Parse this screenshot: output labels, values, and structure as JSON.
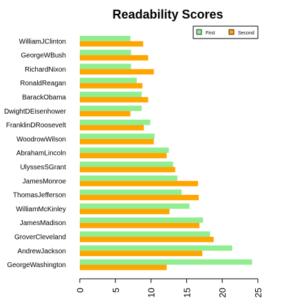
{
  "chart_data": {
    "type": "bar",
    "orientation": "horizontal",
    "title": "Readability Scores",
    "xlabel": "",
    "ylabel": "",
    "xlim": [
      0,
      25
    ],
    "xticks": [
      "0",
      "5",
      "10",
      "15",
      "20",
      "25"
    ],
    "grid": false,
    "legend_position": "top-right",
    "categories": [
      "WilliamJClinton",
      "GeorgeWBush",
      "RichardNixon",
      "RonaldReagan",
      "BarackObama",
      "DwightDEisenhower",
      "FranklinDRoosevelt",
      "WoodrowWilson",
      "AbrahamLincoln",
      "UlyssesSGrant",
      "JamesMonroe",
      "ThomasJefferson",
      "WilliamMcKinley",
      "JamesMadison",
      "GroverCleveland",
      "AndrewJackson",
      "GeorgeWashington"
    ],
    "series": [
      {
        "name": "First",
        "color": "#90ee90",
        "values": [
          7.1,
          7.2,
          7.2,
          8.0,
          8.7,
          8.7,
          9.9,
          10.5,
          12.5,
          13.1,
          13.7,
          14.3,
          15.4,
          17.3,
          18.3,
          21.4,
          24.2
        ]
      },
      {
        "name": "Second",
        "color": "#ffa500",
        "values": [
          8.9,
          9.6,
          10.4,
          8.8,
          9.6,
          7.1,
          9.0,
          10.4,
          12.2,
          13.4,
          16.6,
          16.7,
          12.6,
          16.8,
          18.8,
          17.2,
          12.2
        ]
      }
    ]
  }
}
